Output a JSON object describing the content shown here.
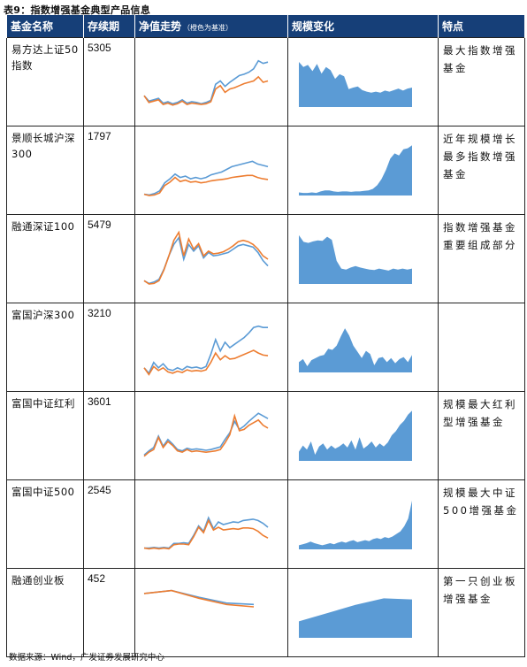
{
  "title": "表9：指数增强基金典型产品信息",
  "headers": {
    "name": "基金名称",
    "days": "存续期",
    "trend": "净值走势",
    "trend_note": "（橙色为基准）",
    "scale": "规模变化",
    "features": "特点"
  },
  "colors": {
    "header_bg": "#163F78",
    "fund_line": "#5B9BD5",
    "benchmark_line": "#ED7D31",
    "scale_fill": "#5B9BD5"
  },
  "rows": [
    {
      "name": "易方达上证50指数",
      "days": "5305",
      "features": "最大指数增强基金",
      "trend": {
        "fund": [
          0.3,
          0.22,
          0.24,
          0.26,
          0.19,
          0.21,
          0.18,
          0.2,
          0.24,
          0.19,
          0.21,
          0.2,
          0.18,
          0.2,
          0.23,
          0.47,
          0.52,
          0.44,
          0.5,
          0.55,
          0.6,
          0.62,
          0.65,
          0.7,
          0.82,
          0.78,
          0.8
        ],
        "benchmark": [
          0.3,
          0.2,
          0.22,
          0.24,
          0.17,
          0.19,
          0.16,
          0.18,
          0.22,
          0.17,
          0.19,
          0.18,
          0.17,
          0.18,
          0.21,
          0.4,
          0.45,
          0.35,
          0.4,
          0.42,
          0.45,
          0.48,
          0.5,
          0.52,
          0.58,
          0.5,
          0.52
        ]
      },
      "scale": [
        0.88,
        0.78,
        0.82,
        0.7,
        0.84,
        0.65,
        0.78,
        0.72,
        0.55,
        0.64,
        0.6,
        0.35,
        0.38,
        0.4,
        0.33,
        0.3,
        0.28,
        0.3,
        0.28,
        0.32,
        0.3,
        0.33,
        0.36,
        0.32,
        0.36,
        0.38
      ]
    },
    {
      "name": "景顺长城沪深300",
      "days": "1797",
      "features": "近年规模增长最多指数增强基金",
      "trend": {
        "fund": [
          0.15,
          0.14,
          0.16,
          0.2,
          0.32,
          0.38,
          0.45,
          0.4,
          0.42,
          0.38,
          0.4,
          0.38,
          0.4,
          0.44,
          0.46,
          0.48,
          0.52,
          0.56,
          0.58,
          0.6,
          0.62,
          0.64,
          0.6,
          0.58,
          0.56
        ],
        "benchmark": [
          0.15,
          0.13,
          0.14,
          0.17,
          0.28,
          0.33,
          0.4,
          0.34,
          0.36,
          0.33,
          0.34,
          0.32,
          0.33,
          0.35,
          0.36,
          0.37,
          0.38,
          0.4,
          0.41,
          0.42,
          0.43,
          0.43,
          0.4,
          0.38,
          0.37
        ]
      },
      "scale": [
        0.06,
        0.05,
        0.05,
        0.06,
        0.05,
        0.08,
        0.1,
        0.1,
        0.08,
        0.07,
        0.08,
        0.08,
        0.07,
        0.08,
        0.08,
        0.09,
        0.1,
        0.13,
        0.2,
        0.32,
        0.5,
        0.72,
        0.82,
        0.78,
        0.9,
        0.92,
        0.98
      ]
    },
    {
      "name": "融通深证100",
      "days": "5479",
      "features": "指数增强基金重要组成部分",
      "trend": {
        "fund": [
          0.18,
          0.14,
          0.16,
          0.2,
          0.35,
          0.55,
          0.72,
          0.82,
          0.5,
          0.72,
          0.62,
          0.7,
          0.52,
          0.6,
          0.55,
          0.56,
          0.58,
          0.6,
          0.65,
          0.7,
          0.72,
          0.7,
          0.68,
          0.6,
          0.48,
          0.4
        ],
        "benchmark": [
          0.18,
          0.13,
          0.14,
          0.18,
          0.34,
          0.55,
          0.78,
          0.9,
          0.55,
          0.8,
          0.65,
          0.73,
          0.55,
          0.62,
          0.58,
          0.59,
          0.61,
          0.65,
          0.7,
          0.76,
          0.78,
          0.76,
          0.72,
          0.65,
          0.55,
          0.5
        ]
      },
      "scale": [
        0.95,
        0.82,
        0.8,
        0.83,
        0.85,
        0.84,
        0.92,
        0.86,
        0.45,
        0.3,
        0.28,
        0.32,
        0.35,
        0.32,
        0.3,
        0.28,
        0.27,
        0.3,
        0.28,
        0.26,
        0.3,
        0.28,
        0.3,
        0.28,
        0.3
      ]
    },
    {
      "name": "富国沪深300",
      "days": "3210",
      "features": "",
      "trend": {
        "fund": [
          0.2,
          0.12,
          0.28,
          0.2,
          0.26,
          0.18,
          0.16,
          0.2,
          0.17,
          0.22,
          0.2,
          0.21,
          0.19,
          0.22,
          0.4,
          0.62,
          0.45,
          0.58,
          0.5,
          0.55,
          0.6,
          0.65,
          0.72,
          0.8,
          0.82,
          0.8,
          0.8
        ],
        "benchmark": [
          0.2,
          0.1,
          0.22,
          0.16,
          0.2,
          0.14,
          0.12,
          0.15,
          0.13,
          0.17,
          0.15,
          0.16,
          0.15,
          0.17,
          0.28,
          0.42,
          0.32,
          0.38,
          0.33,
          0.34,
          0.37,
          0.4,
          0.43,
          0.46,
          0.42,
          0.39,
          0.38
        ]
      },
      "scale": [
        0.2,
        0.26,
        0.12,
        0.24,
        0.28,
        0.32,
        0.34,
        0.46,
        0.44,
        0.52,
        0.7,
        0.86,
        0.72,
        0.52,
        0.4,
        0.28,
        0.42,
        0.36,
        0.14,
        0.28,
        0.3,
        0.2,
        0.28,
        0.18,
        0.26,
        0.3,
        0.2,
        0.34
      ]
    },
    {
      "name": "富国中证红利",
      "days": "3601",
      "features": "规模最大红利型增强基金",
      "trend": {
        "fund": [
          0.22,
          0.28,
          0.33,
          0.5,
          0.35,
          0.45,
          0.38,
          0.3,
          0.28,
          0.32,
          0.3,
          0.31,
          0.3,
          0.29,
          0.3,
          0.32,
          0.34,
          0.45,
          0.55,
          0.72,
          0.6,
          0.65,
          0.72,
          0.78,
          0.84,
          0.8,
          0.76
        ],
        "benchmark": [
          0.2,
          0.26,
          0.3,
          0.48,
          0.33,
          0.42,
          0.36,
          0.28,
          0.26,
          0.3,
          0.27,
          0.28,
          0.27,
          0.26,
          0.27,
          0.28,
          0.3,
          0.4,
          0.52,
          0.8,
          0.58,
          0.6,
          0.66,
          0.7,
          0.74,
          0.66,
          0.62
        ]
      },
      "scale": [
        0.18,
        0.3,
        0.22,
        0.38,
        0.12,
        0.28,
        0.34,
        0.22,
        0.3,
        0.24,
        0.28,
        0.34,
        0.26,
        0.4,
        0.22,
        0.46,
        0.24,
        0.3,
        0.38,
        0.26,
        0.34,
        0.28,
        0.36,
        0.5,
        0.58,
        0.7,
        0.78,
        0.9,
        0.98
      ]
    },
    {
      "name": "富国中证500",
      "days": "2545",
      "features": "规模最大中证500增强基金",
      "trend": {
        "fund": [
          0.15,
          0.15,
          0.16,
          0.15,
          0.16,
          0.15,
          0.22,
          0.22,
          0.23,
          0.22,
          0.34,
          0.48,
          0.4,
          0.6,
          0.44,
          0.54,
          0.5,
          0.52,
          0.54,
          0.53,
          0.56,
          0.57,
          0.58,
          0.56,
          0.52,
          0.46
        ],
        "benchmark": [
          0.15,
          0.14,
          0.15,
          0.14,
          0.15,
          0.14,
          0.2,
          0.21,
          0.21,
          0.2,
          0.32,
          0.46,
          0.38,
          0.56,
          0.42,
          0.46,
          0.42,
          0.43,
          0.44,
          0.43,
          0.45,
          0.45,
          0.44,
          0.4,
          0.34,
          0.3
        ]
      },
      "scale": [
        0.08,
        0.1,
        0.12,
        0.15,
        0.12,
        0.1,
        0.08,
        0.1,
        0.12,
        0.1,
        0.13,
        0.15,
        0.13,
        0.16,
        0.18,
        0.14,
        0.16,
        0.18,
        0.16,
        0.2,
        0.22,
        0.2,
        0.24,
        0.22,
        0.25,
        0.3,
        0.35,
        0.45,
        0.6,
        0.95
      ]
    },
    {
      "name": "融通创业板",
      "days": "452",
      "features": "第一只创业板增强基金",
      "trend": {
        "fund": [
          0.78,
          0.84,
          0.7,
          0.58,
          0.55
        ],
        "benchmark": [
          0.78,
          0.84,
          0.68,
          0.55,
          0.5
        ]
      },
      "scale": [
        0.3,
        0.45,
        0.6,
        0.72,
        0.7
      ]
    }
  ],
  "source": "数据来源：Wind，广发证券发展研究中心"
}
